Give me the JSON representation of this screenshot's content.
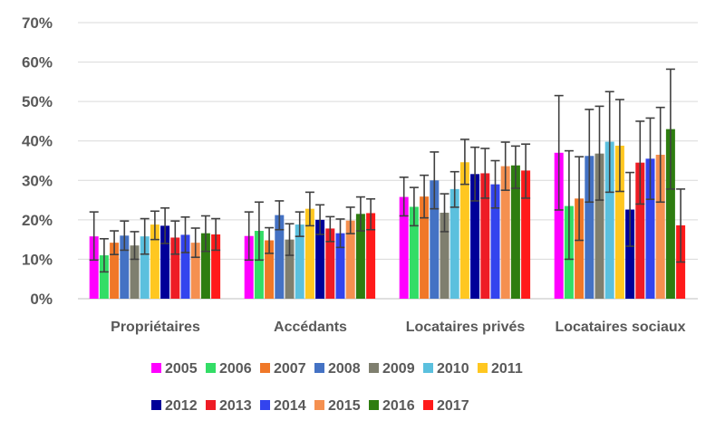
{
  "chart_data": {
    "type": "bar",
    "title": "",
    "xlabel": "",
    "ylabel": "",
    "ylim": [
      0,
      70
    ],
    "y_ticks": [
      "0%",
      "10%",
      "20%",
      "30%",
      "40%",
      "50%",
      "60%",
      "70%"
    ],
    "categories": [
      "Propriétaires",
      "Accédants",
      "Locataires privés",
      "Locataires sociaux"
    ],
    "error_bars": true,
    "grid": true,
    "legend_position": "bottom",
    "series": [
      {
        "name": "2005",
        "color": "#ff00ff",
        "values": [
          15.8,
          15.9,
          25.8,
          37.0
        ],
        "err": [
          [
            9.8,
            22.0
          ],
          [
            9.8,
            22.0
          ],
          [
            21.0,
            30.8
          ],
          [
            22.5,
            51.5
          ]
        ]
      },
      {
        "name": "2006",
        "color": "#33dd66",
        "values": [
          11.0,
          17.2,
          23.3,
          23.5
        ],
        "err": [
          [
            6.8,
            15.2
          ],
          [
            9.8,
            24.5
          ],
          [
            18.5,
            28.2
          ],
          [
            10.0,
            37.5
          ]
        ]
      },
      {
        "name": "2007",
        "color": "#f07828",
        "values": [
          14.2,
          14.8,
          25.9,
          25.4
        ],
        "err": [
          [
            11.2,
            17.2
          ],
          [
            11.5,
            18.0
          ],
          [
            20.5,
            31.3
          ],
          [
            14.8,
            36.0
          ]
        ]
      },
      {
        "name": "2008",
        "color": "#4472c4",
        "values": [
          16.0,
          21.2,
          30.0,
          36.2
        ],
        "err": [
          [
            12.3,
            19.7
          ],
          [
            17.5,
            24.8
          ],
          [
            22.8,
            37.2
          ],
          [
            24.5,
            48.0
          ]
        ]
      },
      {
        "name": "2009",
        "color": "#7f7f6f",
        "values": [
          13.5,
          15.0,
          21.8,
          36.8
        ],
        "err": [
          [
            10.0,
            17.0
          ],
          [
            11.0,
            19.0
          ],
          [
            17.0,
            26.6
          ],
          [
            25.0,
            48.8
          ]
        ]
      },
      {
        "name": "2010",
        "color": "#5bc0de",
        "values": [
          15.8,
          18.8,
          27.8,
          39.8
        ],
        "err": [
          [
            11.3,
            20.3
          ],
          [
            15.8,
            22.0
          ],
          [
            23.2,
            32.2
          ],
          [
            27.0,
            52.5
          ]
        ]
      },
      {
        "name": "2011",
        "color": "#ffc720",
        "values": [
          18.8,
          22.8,
          34.6,
          38.8
        ],
        "err": [
          [
            15.0,
            22.2
          ],
          [
            18.5,
            27.0
          ],
          [
            29.0,
            40.4
          ],
          [
            27.2,
            50.5
          ]
        ]
      },
      {
        "name": "2012",
        "color": "#000099",
        "values": [
          18.5,
          20.0,
          31.6,
          22.6
        ],
        "err": [
          [
            14.0,
            23.0
          ],
          [
            16.3,
            23.8
          ],
          [
            24.8,
            38.4
          ],
          [
            13.3,
            32.0
          ]
        ]
      },
      {
        "name": "2013",
        "color": "#ee1c25",
        "values": [
          15.5,
          17.8,
          31.8,
          34.5
        ],
        "err": [
          [
            11.3,
            19.7
          ],
          [
            14.5,
            20.8
          ],
          [
            25.5,
            38.1
          ],
          [
            24.0,
            45.0
          ]
        ]
      },
      {
        "name": "2014",
        "color": "#3344ee",
        "values": [
          16.2,
          16.6,
          29.0,
          35.5
        ],
        "err": [
          [
            11.7,
            20.7
          ],
          [
            13.0,
            20.2
          ],
          [
            23.0,
            35.0
          ],
          [
            25.2,
            45.8
          ]
        ]
      },
      {
        "name": "2015",
        "color": "#f59050",
        "values": [
          14.2,
          19.8,
          33.6,
          36.5
        ],
        "err": [
          [
            10.5,
            17.9
          ],
          [
            16.5,
            23.2
          ],
          [
            27.5,
            39.7
          ],
          [
            24.5,
            48.5
          ]
        ]
      },
      {
        "name": "2016",
        "color": "#2e7d10",
        "values": [
          16.6,
          21.5,
          33.8,
          43.0
        ],
        "err": [
          [
            12.0,
            21.0
          ],
          [
            17.2,
            25.8
          ],
          [
            28.0,
            38.7
          ],
          [
            27.8,
            58.2
          ]
        ]
      },
      {
        "name": "2017",
        "color": "#ff1a1a",
        "values": [
          16.3,
          21.7,
          32.5,
          18.6
        ],
        "err": [
          [
            12.3,
            20.3
          ],
          [
            17.5,
            25.3
          ],
          [
            25.5,
            39.2
          ],
          [
            9.3,
            27.8
          ]
        ]
      }
    ]
  }
}
